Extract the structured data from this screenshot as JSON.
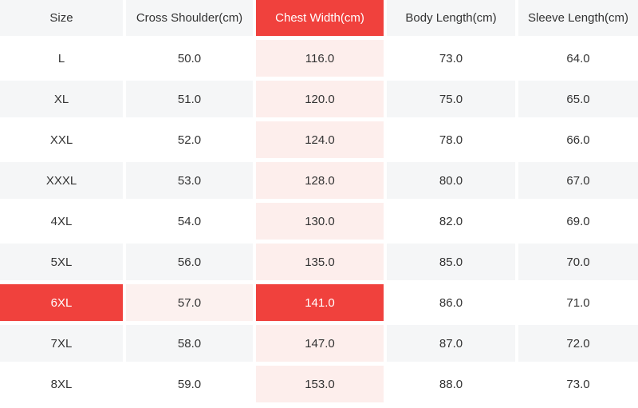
{
  "colors": {
    "accent_red": "#f0413d",
    "row_alt_gray": "#f5f6f7",
    "chest_column_pink": "#fdeeec",
    "highlight_row_pink": "#fcf1ef",
    "text": "#333333",
    "header_selected_text": "#ffffff"
  },
  "chart_data": {
    "type": "table",
    "columns": [
      "Size",
      "Cross Shoulder(cm)",
      "Chest Width(cm)",
      "Body Length(cm)",
      "Sleeve Length(cm)"
    ],
    "rows": [
      [
        "L",
        "50.0",
        "116.0",
        "73.0",
        "64.0"
      ],
      [
        "XL",
        "51.0",
        "120.0",
        "75.0",
        "65.0"
      ],
      [
        "XXL",
        "52.0",
        "124.0",
        "78.0",
        "66.0"
      ],
      [
        "XXXL",
        "53.0",
        "128.0",
        "80.0",
        "67.0"
      ],
      [
        "4XL",
        "54.0",
        "130.0",
        "82.0",
        "69.0"
      ],
      [
        "5XL",
        "56.0",
        "135.0",
        "85.0",
        "70.0"
      ],
      [
        "6XL",
        "57.0",
        "141.0",
        "86.0",
        "71.0"
      ],
      [
        "7XL",
        "58.0",
        "147.0",
        "87.0",
        "72.0"
      ],
      [
        "8XL",
        "59.0",
        "153.0",
        "88.0",
        "73.0"
      ]
    ],
    "highlighted_column": "Chest Width(cm)",
    "highlighted_row": "6XL",
    "layout_hints": {
      "striped_rows": true,
      "units": "cm"
    }
  }
}
